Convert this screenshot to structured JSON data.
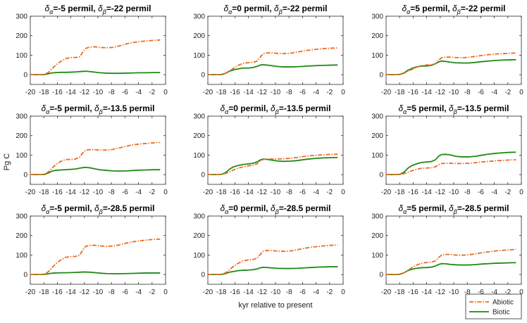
{
  "figure": {
    "ylabel": "Pg C",
    "xlabel": "kyr relative to present",
    "legend": [
      {
        "name": "Abiotic",
        "color": "#EE6A1A",
        "style": "dash-dot"
      },
      {
        "name": "Biotic",
        "color": "#1F8A14",
        "style": "solid"
      }
    ],
    "xlim": [
      -20,
      0
    ],
    "ylim": [
      -50,
      300
    ],
    "xticks": [
      "-20",
      "-18",
      "-16",
      "-14",
      "-12",
      "-10",
      "-8",
      "-6",
      "-4",
      "-2",
      "0"
    ],
    "yticks": [
      "0",
      "100",
      "200",
      "300"
    ]
  },
  "chart_data": [
    {
      "type": "line",
      "title_pre": "=-5 permil, ",
      "title_post": "=-22 permil",
      "x": [
        -20,
        -18.5,
        -17.9,
        -17.3,
        -16.8,
        -16.2,
        -15.5,
        -14.8,
        -14.0,
        -13.3,
        -12.7,
        -12.2,
        -11.8,
        -11.2,
        -10.5,
        -9.7,
        -8.8,
        -7.8,
        -6.8,
        -5.8,
        -4.8,
        -3.8,
        -2.8,
        -1.8,
        -0.8
      ],
      "series": [
        {
          "name": "Abiotic",
          "values": [
            0,
            0,
            2,
            12,
            30,
            50,
            68,
            82,
            88,
            88,
            92,
            118,
            135,
            142,
            143,
            140,
            138,
            140,
            148,
            158,
            165,
            170,
            173,
            176,
            178
          ]
        },
        {
          "name": "Biotic",
          "values": [
            0,
            0,
            1,
            5,
            9,
            11,
            12,
            12,
            13,
            14,
            16,
            17,
            18,
            16,
            13,
            10,
            8,
            7,
            7,
            8,
            9,
            10,
            10,
            11,
            11
          ]
        }
      ]
    },
    {
      "type": "line",
      "title_pre": "=0 permil, ",
      "title_post": "=-22 permil",
      "x": [
        -20,
        -18.5,
        -17.9,
        -17.3,
        -16.8,
        -16.2,
        -15.5,
        -14.8,
        -14.0,
        -13.3,
        -12.7,
        -12.2,
        -11.8,
        -11.2,
        -10.5,
        -9.7,
        -8.8,
        -7.8,
        -6.8,
        -5.8,
        -4.8,
        -3.8,
        -2.8,
        -1.8,
        -0.8
      ],
      "series": [
        {
          "name": "Abiotic",
          "values": [
            0,
            0,
            2,
            9,
            20,
            33,
            48,
            58,
            62,
            63,
            70,
            92,
            108,
            112,
            112,
            109,
            108,
            110,
            116,
            122,
            127,
            131,
            134,
            136,
            137
          ]
        },
        {
          "name": "Biotic",
          "values": [
            0,
            0,
            1,
            8,
            18,
            25,
            30,
            34,
            34,
            37,
            43,
            50,
            51,
            49,
            46,
            42,
            40,
            40,
            41,
            43,
            45,
            47,
            48,
            49,
            50
          ]
        }
      ]
    },
    {
      "type": "line",
      "title_pre": "=5 permil, ",
      "title_post": "=-22 permil",
      "x": [
        -20,
        -18.5,
        -17.9,
        -17.3,
        -16.8,
        -16.2,
        -15.5,
        -14.8,
        -14.0,
        -13.3,
        -12.7,
        -12.2,
        -11.8,
        -11.2,
        -10.5,
        -9.7,
        -8.8,
        -7.8,
        -6.8,
        -5.8,
        -4.8,
        -3.8,
        -2.8,
        -1.8,
        -0.8
      ],
      "series": [
        {
          "name": "Abiotic",
          "values": [
            0,
            0,
            2,
            8,
            17,
            27,
            38,
            46,
            50,
            51,
            57,
            74,
            87,
            90,
            90,
            88,
            87,
            89,
            94,
            99,
            103,
            106,
            108,
            110,
            111
          ]
        },
        {
          "name": "Biotic",
          "values": [
            0,
            0,
            2,
            10,
            22,
            32,
            40,
            44,
            45,
            48,
            56,
            66,
            70,
            68,
            64,
            61,
            60,
            60,
            63,
            67,
            70,
            73,
            75,
            76,
            77
          ]
        }
      ]
    },
    {
      "type": "line",
      "title_pre": "=-5 permil, ",
      "title_post": "=-13.5 permil",
      "x": [
        -20,
        -18.5,
        -17.9,
        -17.3,
        -16.8,
        -16.2,
        -15.5,
        -14.8,
        -14.0,
        -13.3,
        -12.7,
        -12.2,
        -11.8,
        -11.2,
        -10.5,
        -9.7,
        -8.8,
        -7.8,
        -6.8,
        -5.8,
        -4.8,
        -3.8,
        -2.8,
        -1.8,
        -0.8
      ],
      "series": [
        {
          "name": "Abiotic",
          "values": [
            0,
            0,
            3,
            14,
            33,
            52,
            68,
            77,
            78,
            80,
            90,
            113,
            125,
            128,
            128,
            126,
            126,
            129,
            137,
            146,
            153,
            157,
            160,
            163,
            165
          ]
        },
        {
          "name": "Biotic",
          "values": [
            0,
            0,
            1,
            9,
            18,
            22,
            24,
            25,
            27,
            29,
            33,
            36,
            37,
            35,
            30,
            25,
            22,
            19,
            18,
            19,
            21,
            23,
            24,
            25,
            25
          ]
        }
      ]
    },
    {
      "type": "line",
      "title_pre": "=0 permil, ",
      "title_post": "=-13.5 permil",
      "x": [
        -20,
        -18.5,
        -17.9,
        -17.3,
        -16.8,
        -16.2,
        -15.5,
        -14.8,
        -14.0,
        -13.3,
        -12.7,
        -12.2,
        -11.8,
        -11.2,
        -10.5,
        -9.7,
        -8.8,
        -7.8,
        -6.8,
        -5.8,
        -4.8,
        -3.8,
        -2.8,
        -1.8,
        -0.8
      ],
      "series": [
        {
          "name": "Abiotic",
          "values": [
            0,
            0,
            2,
            7,
            14,
            24,
            33,
            40,
            45,
            48,
            56,
            70,
            78,
            80,
            80,
            80,
            81,
            84,
            88,
            93,
            97,
            100,
            102,
            104,
            104
          ]
        },
        {
          "name": "Biotic",
          "values": [
            0,
            0,
            2,
            12,
            28,
            40,
            47,
            52,
            55,
            58,
            66,
            76,
            80,
            78,
            74,
            70,
            68,
            69,
            72,
            77,
            81,
            84,
            86,
            87,
            88
          ]
        }
      ]
    },
    {
      "type": "line",
      "title_pre": "=5 permil, ",
      "title_post": "=-13.5 permil",
      "x": [
        -20,
        -18.5,
        -17.9,
        -17.3,
        -16.8,
        -16.2,
        -15.5,
        -14.8,
        -14.0,
        -13.3,
        -12.7,
        -12.2,
        -11.8,
        -11.2,
        -10.5,
        -9.7,
        -8.8,
        -7.8,
        -6.8,
        -5.8,
        -4.8,
        -3.8,
        -2.8,
        -1.8,
        -0.8
      ],
      "series": [
        {
          "name": "Abiotic",
          "values": [
            0,
            0,
            1,
            6,
            12,
            20,
            27,
            32,
            34,
            35,
            40,
            51,
            57,
            58,
            58,
            57,
            57,
            58,
            61,
            65,
            68,
            71,
            73,
            75,
            76
          ]
        },
        {
          "name": "Biotic",
          "values": [
            0,
            0,
            2,
            14,
            32,
            46,
            55,
            62,
            65,
            67,
            76,
            95,
            103,
            104,
            101,
            94,
            91,
            91,
            94,
            100,
            105,
            109,
            112,
            114,
            115
          ]
        }
      ]
    },
    {
      "type": "line",
      "title_pre": "=-5 permil, ",
      "title_post": "=-28.5 permil",
      "x": [
        -20,
        -18.5,
        -17.9,
        -17.3,
        -16.8,
        -16.2,
        -15.5,
        -14.8,
        -14.0,
        -13.3,
        -12.7,
        -12.2,
        -11.8,
        -11.2,
        -10.5,
        -9.7,
        -8.8,
        -7.8,
        -6.8,
        -5.8,
        -4.8,
        -3.8,
        -2.8,
        -1.8,
        -0.8
      ],
      "series": [
        {
          "name": "Abiotic",
          "values": [
            0,
            0,
            3,
            15,
            35,
            56,
            75,
            88,
            92,
            93,
            100,
            128,
            145,
            150,
            150,
            147,
            145,
            146,
            152,
            161,
            168,
            173,
            177,
            180,
            182
          ]
        },
        {
          "name": "Biotic",
          "values": [
            0,
            0,
            1,
            4,
            7,
            8,
            9,
            9,
            10,
            11,
            12,
            13,
            13,
            12,
            10,
            7,
            5,
            4,
            4,
            5,
            6,
            7,
            8,
            8,
            8
          ]
        }
      ]
    },
    {
      "type": "line",
      "title_pre": "=0 permil, ",
      "title_post": "=-28.5 permil",
      "x": [
        -20,
        -18.5,
        -17.9,
        -17.3,
        -16.8,
        -16.2,
        -15.5,
        -14.8,
        -14.0,
        -13.3,
        -12.7,
        -12.2,
        -11.8,
        -11.2,
        -10.5,
        -9.7,
        -8.8,
        -7.8,
        -6.8,
        -5.8,
        -4.8,
        -3.8,
        -2.8,
        -1.8,
        -0.8
      ],
      "series": [
        {
          "name": "Abiotic",
          "values": [
            0,
            0,
            2,
            10,
            25,
            42,
            58,
            70,
            75,
            77,
            84,
            105,
            120,
            123,
            123,
            120,
            119,
            121,
            127,
            134,
            140,
            144,
            147,
            150,
            151
          ]
        },
        {
          "name": "Biotic",
          "values": [
            0,
            0,
            1,
            6,
            12,
            16,
            20,
            22,
            23,
            25,
            29,
            35,
            37,
            36,
            34,
            32,
            31,
            31,
            32,
            34,
            36,
            38,
            39,
            40,
            40
          ]
        }
      ]
    },
    {
      "type": "line",
      "title_pre": "=5 permil, ",
      "title_post": "=-28.5 permil",
      "x": [
        -20,
        -18.5,
        -17.9,
        -17.3,
        -16.8,
        -16.2,
        -15.5,
        -14.8,
        -14.0,
        -13.3,
        -12.7,
        -12.2,
        -11.8,
        -11.2,
        -10.5,
        -9.7,
        -8.8,
        -7.8,
        -6.8,
        -5.8,
        -4.8,
        -3.8,
        -2.8,
        -1.8,
        -0.8
      ],
      "series": [
        {
          "name": "Abiotic",
          "values": [
            0,
            0,
            2,
            9,
            21,
            35,
            48,
            58,
            62,
            64,
            70,
            88,
            100,
            103,
            103,
            100,
            99,
            101,
            106,
            112,
            117,
            121,
            124,
            127,
            128
          ]
        },
        {
          "name": "Biotic",
          "values": [
            0,
            0,
            2,
            10,
            20,
            27,
            32,
            35,
            36,
            38,
            44,
            52,
            56,
            55,
            52,
            50,
            49,
            49,
            51,
            54,
            56,
            58,
            59,
            60,
            61
          ]
        }
      ]
    }
  ]
}
